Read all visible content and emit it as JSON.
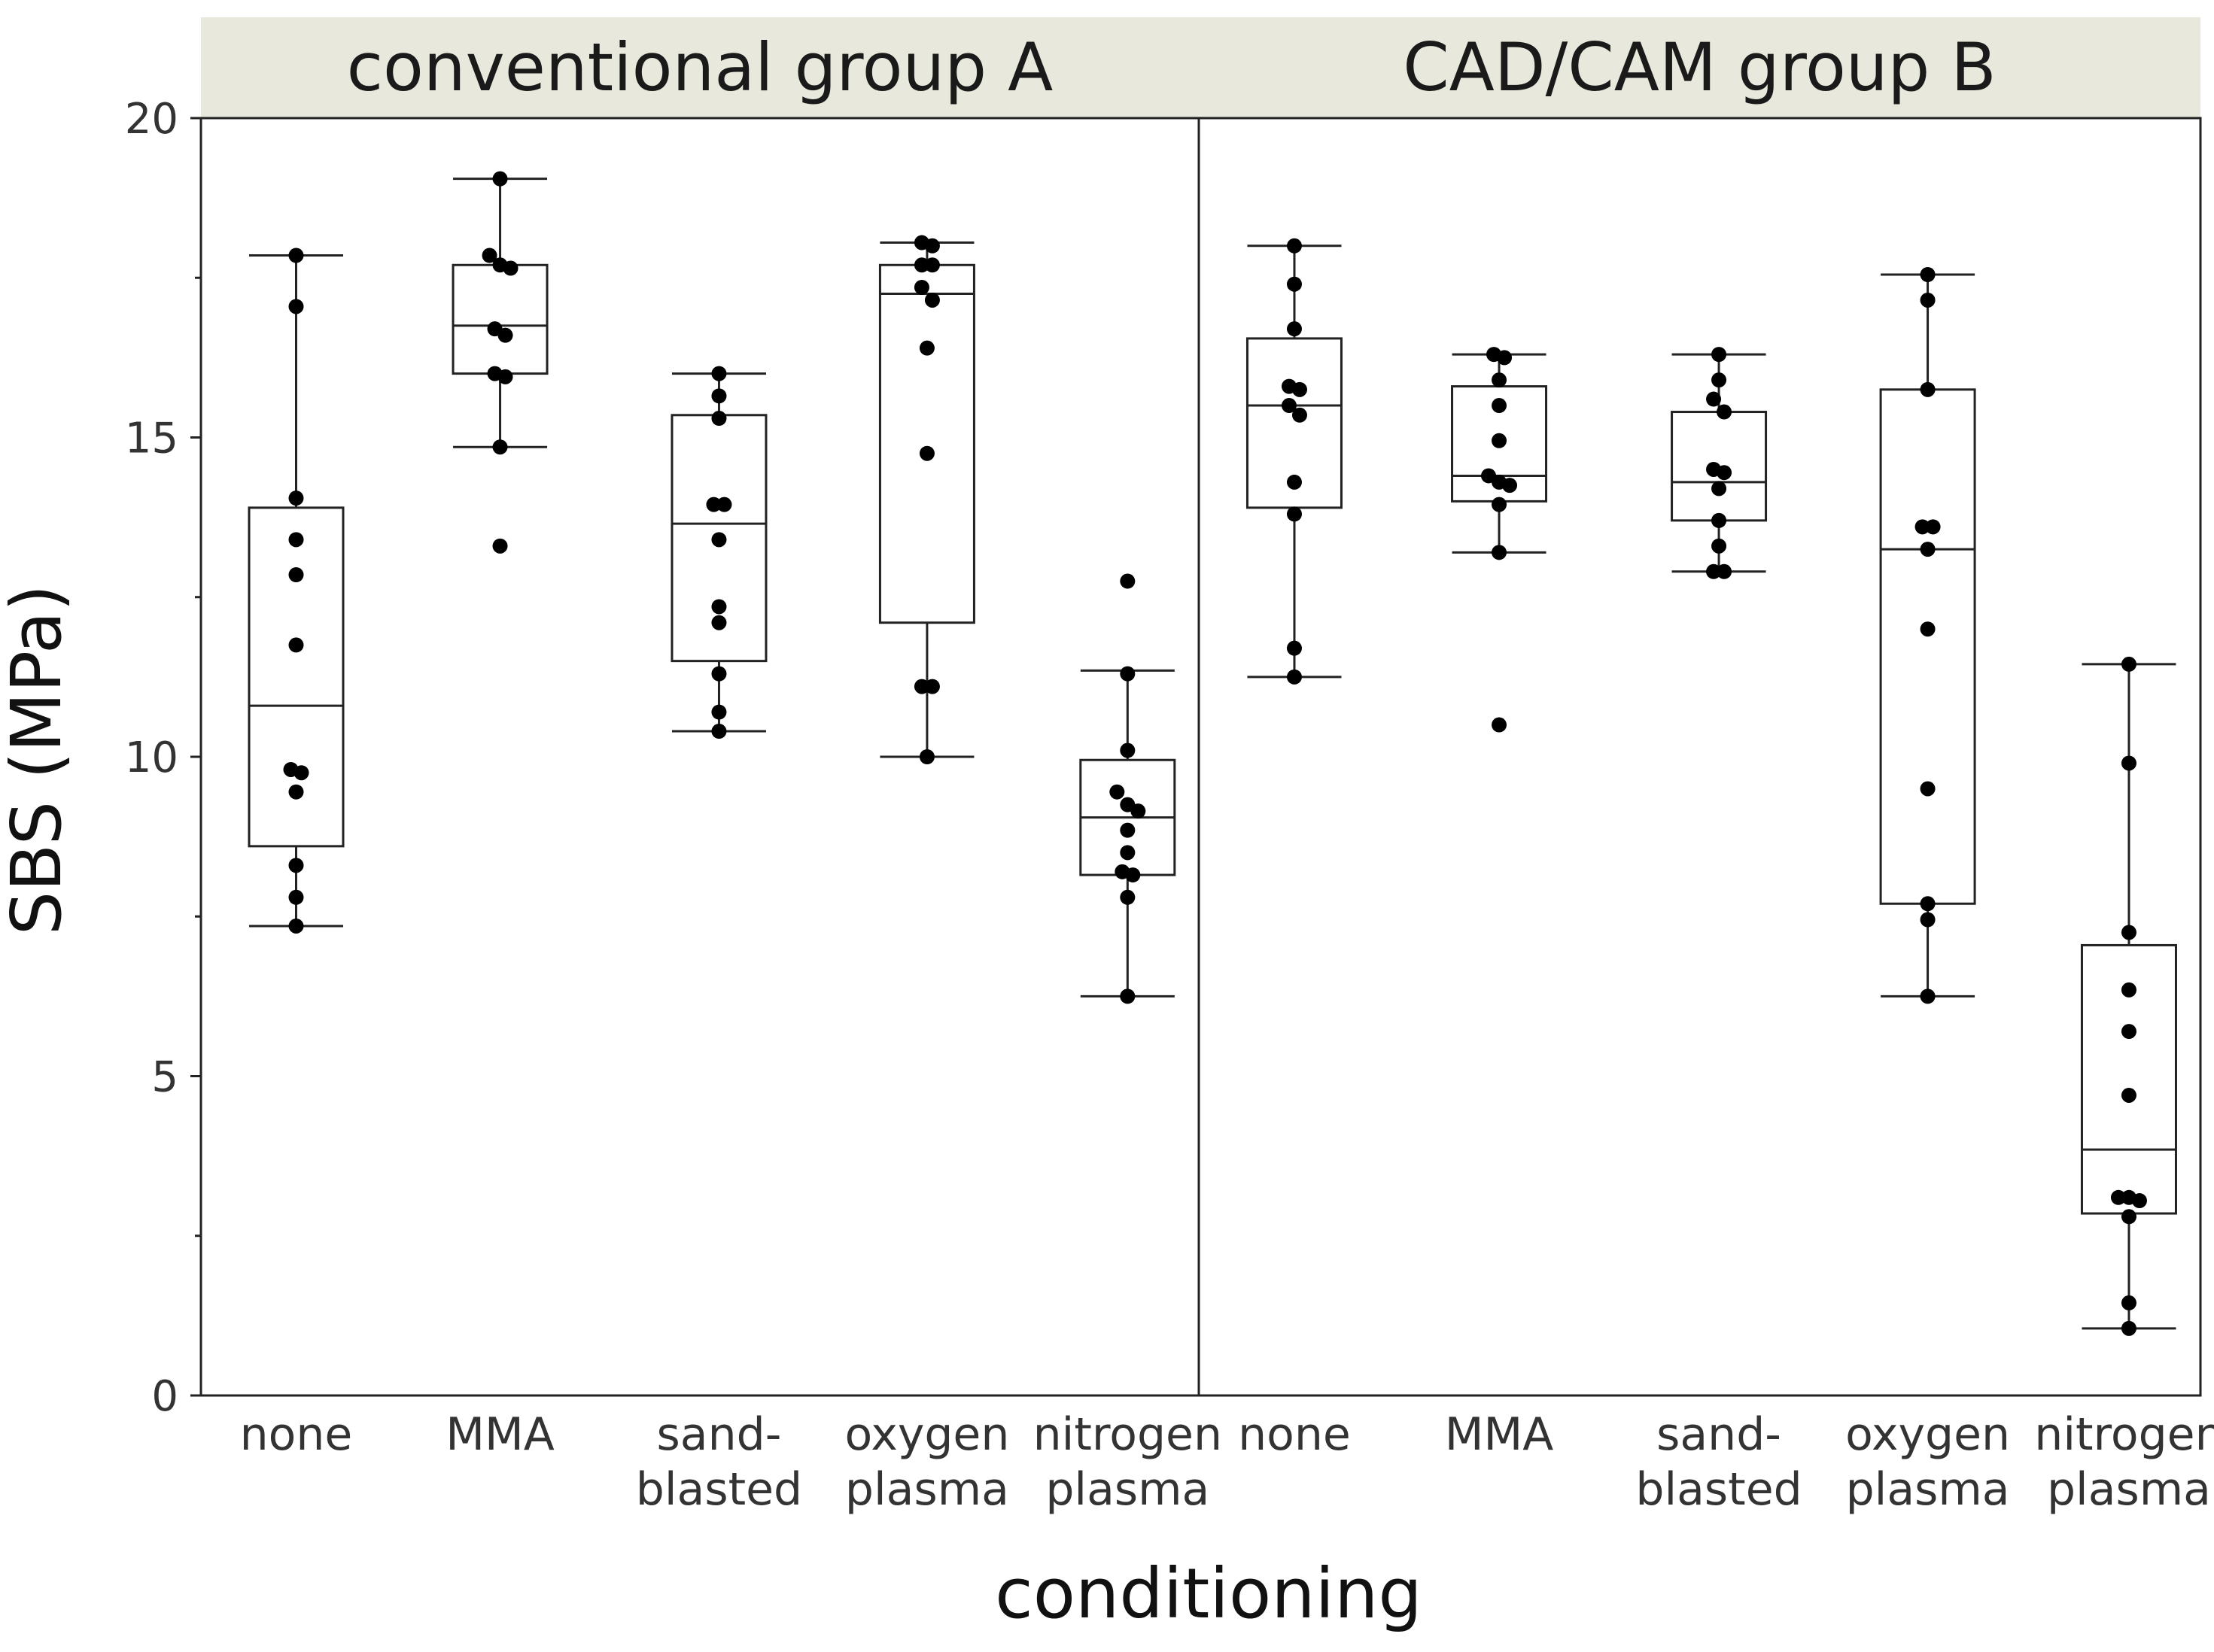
{
  "chart_data": {
    "type": "box",
    "xlabel": "conditioning",
    "ylabel": "SBS (MPa)",
    "ylim": [
      0,
      20
    ],
    "yticks": [
      0,
      5,
      10,
      15,
      20
    ],
    "categories": [
      "none",
      "MMA",
      "sand-blasted",
      "oxygen plasma",
      "nitrogen plasma"
    ],
    "category_lines": [
      [
        "none"
      ],
      [
        "MMA"
      ],
      [
        "sand-",
        "blasted"
      ],
      [
        "oxygen",
        "plasma"
      ],
      [
        "nitrogen",
        "plasma"
      ]
    ],
    "panels": [
      {
        "title": "conventional group A",
        "groups": [
          {
            "category": "none",
            "whisker_low": 7.35,
            "q1": 8.6,
            "median": 10.8,
            "q3": 13.9,
            "whisker_high": 17.85,
            "points": [
              17.85,
              17.05,
              14.05,
              13.4,
              12.85,
              11.75,
              9.8,
              9.75,
              9.45,
              8.3,
              7.8,
              7.35
            ]
          },
          {
            "category": "MMA",
            "whisker_low": 14.85,
            "q1": 16.0,
            "median": 16.75,
            "q3": 17.7,
            "whisker_high": 19.05,
            "points": [
              19.05,
              17.85,
              17.7,
              17.65,
              16.7,
              16.6,
              16.0,
              15.95,
              14.85,
              13.3
            ]
          },
          {
            "category": "sand-blasted",
            "whisker_low": 10.4,
            "q1": 11.5,
            "median": 13.65,
            "q3": 15.35,
            "whisker_high": 16.0,
            "points": [
              16.0,
              15.65,
              15.3,
              13.95,
              13.95,
              13.4,
              12.35,
              12.1,
              11.3,
              10.7,
              10.4
            ]
          },
          {
            "category": "oxygen plasma",
            "whisker_low": 10.0,
            "q1": 12.1,
            "median": 17.25,
            "q3": 17.7,
            "whisker_high": 18.05,
            "points": [
              18.05,
              18.0,
              17.7,
              17.7,
              17.35,
              17.15,
              16.4,
              14.75,
              11.1,
              11.1,
              10.0
            ]
          },
          {
            "category": "nitrogen plasma",
            "whisker_low": 6.25,
            "q1": 8.15,
            "median": 9.05,
            "q3": 9.95,
            "whisker_high": 11.35,
            "points": [
              12.75,
              11.3,
              10.1,
              9.45,
              9.25,
              9.15,
              8.85,
              8.5,
              8.2,
              8.15,
              7.8,
              6.25
            ]
          }
        ]
      },
      {
        "title": "CAD/CAM group B",
        "groups": [
          {
            "category": "none",
            "whisker_low": 11.25,
            "q1": 13.9,
            "median": 15.5,
            "q3": 16.55,
            "whisker_high": 18.0,
            "points": [
              18.0,
              17.4,
              16.7,
              15.8,
              15.75,
              15.5,
              15.35,
              14.3,
              13.8,
              11.7,
              11.25
            ]
          },
          {
            "category": "MMA",
            "whisker_low": 13.2,
            "q1": 14.0,
            "median": 14.4,
            "q3": 15.8,
            "whisker_high": 16.3,
            "points": [
              16.3,
              16.25,
              15.9,
              15.5,
              14.95,
              14.4,
              14.3,
              14.25,
              13.95,
              13.2,
              10.5
            ]
          },
          {
            "category": "sand-blasted",
            "whisker_low": 12.9,
            "q1": 13.7,
            "median": 14.3,
            "q3": 15.4,
            "whisker_high": 16.3,
            "points": [
              16.3,
              15.9,
              15.6,
              15.4,
              14.5,
              14.45,
              14.2,
              13.7,
              13.3,
              12.9,
              12.9
            ]
          },
          {
            "category": "oxygen plasma",
            "whisker_low": 6.25,
            "q1": 7.7,
            "median": 13.25,
            "q3": 15.75,
            "whisker_high": 17.55,
            "points": [
              17.55,
              17.15,
              15.75,
              13.6,
              13.6,
              13.25,
              12.0,
              9.5,
              7.7,
              7.45,
              6.25
            ]
          },
          {
            "category": "nitrogen plasma",
            "whisker_low": 1.05,
            "q1": 2.85,
            "median": 3.85,
            "q3": 7.05,
            "whisker_high": 11.45,
            "points": [
              11.45,
              9.9,
              7.25,
              6.35,
              5.7,
              4.7,
              3.1,
              3.1,
              3.05,
              2.8,
              1.45,
              1.05
            ]
          }
        ]
      }
    ]
  }
}
